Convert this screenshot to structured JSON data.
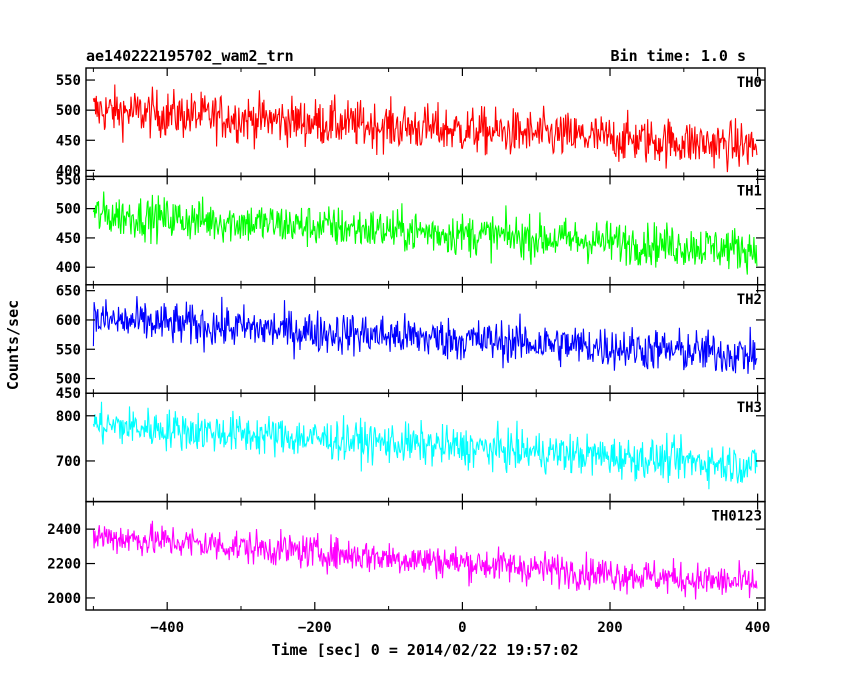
{
  "chart_data": {
    "type": "line",
    "title_left": "ae140222195702_wam2_trn",
    "title_right": "Bin time: 1.0 s",
    "xlabel": "Time [sec] 0 = 2014/02/22 19:57:02",
    "ylabel": "Counts/sec",
    "xlim": [
      -510,
      410
    ],
    "x_ticks": [
      -400,
      -200,
      0,
      200,
      400
    ],
    "x_tick_labels": [
      "−400",
      "−200",
      "0",
      "200",
      "400"
    ],
    "x_start": -500,
    "x_end": 399,
    "bin_time_s": 1.0,
    "panels": [
      {
        "name": "TH0",
        "color": "#ff0000",
        "ylim": [
          390,
          570
        ],
        "y_ticks": [
          400,
          450,
          500,
          550
        ],
        "y_tick_labels": [
          "400",
          "450",
          "500",
          "550"
        ],
        "trend_start": 500,
        "trend_end": 440,
        "noise_amp": 28
      },
      {
        "name": "TH1",
        "color": "#00ff00",
        "ylim": [
          370,
          555
        ],
        "y_ticks": [
          400,
          450,
          500,
          550
        ],
        "y_tick_labels": [
          "400",
          "450",
          "500",
          "550"
        ],
        "trend_start": 490,
        "trend_end": 430,
        "noise_amp": 26
      },
      {
        "name": "TH2",
        "color": "#0000ff",
        "ylim": [
          475,
          660
        ],
        "y_ticks": [
          500,
          550,
          600,
          650
        ],
        "y_tick_labels": [
          "500",
          "550",
          "600",
          "650"
        ],
        "trend_start": 600,
        "trend_end": 540,
        "noise_amp": 26
      },
      {
        "name": "TH3",
        "color": "#00ffff",
        "ylim": [
          610,
          850
        ],
        "y_ticks": [
          700,
          800
        ],
        "y_tick_labels": [
          "700",
          "800"
        ],
        "extra_top_label": "450",
        "trend_start": 780,
        "trend_end": 690,
        "noise_amp": 32
      },
      {
        "name": "TH0123",
        "color": "#ff00ff",
        "ylim": [
          1930,
          2560
        ],
        "y_ticks": [
          2000,
          2200,
          2400
        ],
        "y_tick_labels": [
          "2000",
          "2200",
          "2400"
        ],
        "trend_start": 2360,
        "trend_end": 2080,
        "noise_amp": 70
      }
    ]
  }
}
